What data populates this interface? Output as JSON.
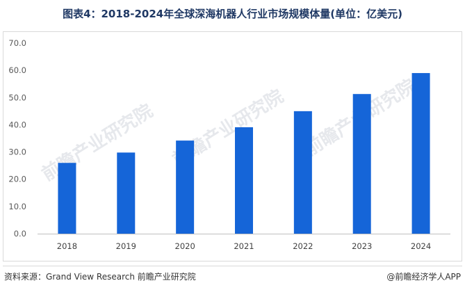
{
  "title": "图表4：2018-2024年全球深海机器人行业市场规模体量(单位：亿美元)",
  "source_label": "资料来源：",
  "source_text": "Grand View Research 前瞻产业研究院",
  "brand": "@前瞻经济学人APP",
  "watermark": "前瞻产业研究院",
  "colors": {
    "bar": "#1565d8",
    "title": "#1f3864",
    "axis": "#bfbfbf",
    "text": "#595959"
  },
  "chart_data": {
    "type": "bar",
    "categories": [
      "2018",
      "2019",
      "2020",
      "2021",
      "2022",
      "2023",
      "2024"
    ],
    "values": [
      26.0,
      29.8,
      34.2,
      39.1,
      45.0,
      51.3,
      59.0
    ],
    "yticks": [
      "0.0",
      "10.0",
      "20.0",
      "30.0",
      "40.0",
      "50.0",
      "60.0",
      "70.0"
    ],
    "ylim": [
      0,
      70
    ],
    "grid": false,
    "legend": "none"
  }
}
